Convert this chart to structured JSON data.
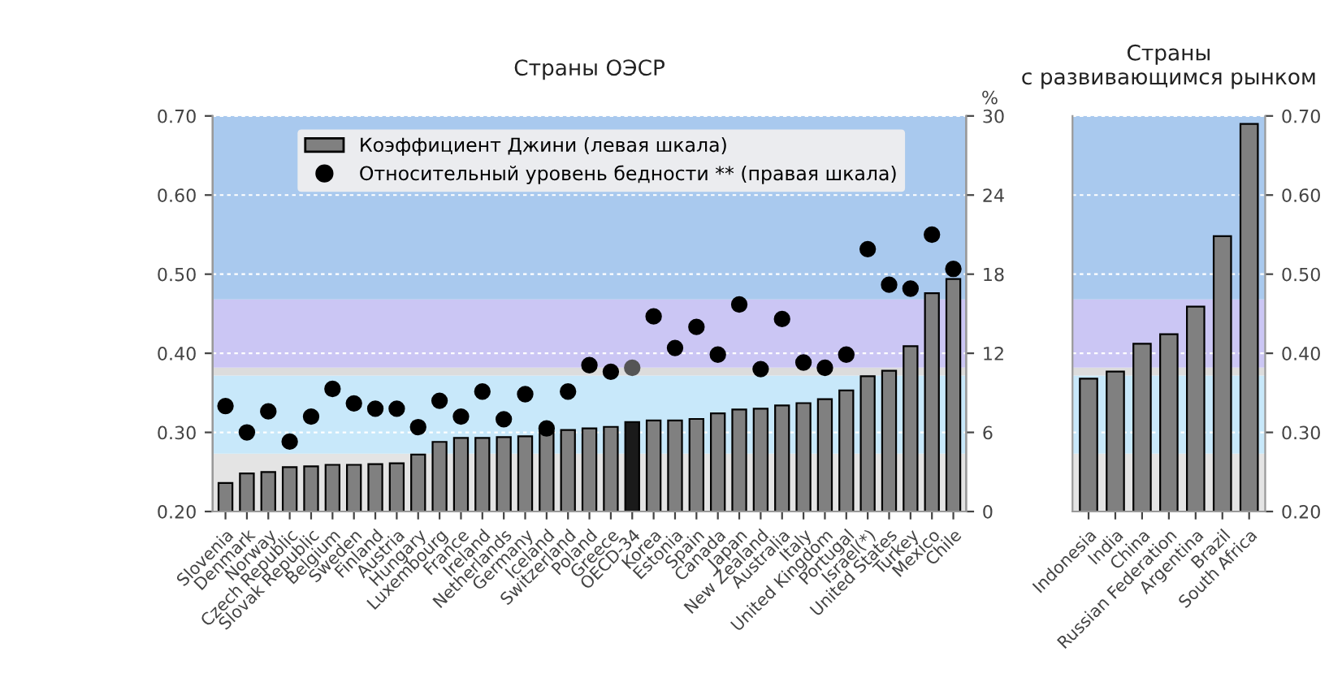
{
  "chart_data": [
    {
      "type": "bar",
      "title": "Страны ОЭСР",
      "y2label": "%",
      "categories": [
        "Slovenia",
        "Denmark",
        "Norway",
        "Czech Republic",
        "Slovak Republic",
        "Belgium",
        "Sweden",
        "Finland",
        "Austria",
        "Hungary",
        "Luxembourg",
        "France",
        "Ireland",
        "Netherlands",
        "Germany",
        "Iceland",
        "Switzerland",
        "Poland",
        "Greece",
        "OECD-34",
        "Korea",
        "Estonia",
        "Spain",
        "Canada",
        "Japan",
        "New Zealand",
        "Australia",
        "Italy",
        "United Kingdom",
        "Portugal",
        "Israel(*)",
        "United States",
        "Turkey",
        "Mexico",
        "Chile"
      ],
      "series": [
        {
          "name": "Коэффициент Джини (левая шкала)",
          "color": "#808080",
          "colors": [
            "#808080",
            "#808080",
            "#808080",
            "#808080",
            "#808080",
            "#808080",
            "#808080",
            "#808080",
            "#808080",
            "#808080",
            "#808080",
            "#808080",
            "#808080",
            "#808080",
            "#808080",
            "#808080",
            "#808080",
            "#808080",
            "#808080",
            "#1a1a1a",
            "#808080",
            "#808080",
            "#808080",
            "#808080",
            "#808080",
            "#808080",
            "#808080",
            "#808080",
            "#808080",
            "#808080",
            "#808080",
            "#808080",
            "#808080",
            "#808080",
            "#808080"
          ],
          "values": [
            0.236,
            0.248,
            0.25,
            0.256,
            0.257,
            0.259,
            0.259,
            0.26,
            0.261,
            0.272,
            0.288,
            0.293,
            0.293,
            0.294,
            0.295,
            0.301,
            0.303,
            0.305,
            0.307,
            0.313,
            0.315,
            0.315,
            0.317,
            0.324,
            0.329,
            0.33,
            0.334,
            0.337,
            0.342,
            0.353,
            0.371,
            0.378,
            0.409,
            0.476,
            0.494
          ]
        },
        {
          "name": "Относительный уровень бедности ** (правая шкала)",
          "type": "scatter",
          "axis": "y2",
          "color": "#000000",
          "colors": [
            "#000000",
            "#000000",
            "#000000",
            "#000000",
            "#000000",
            "#000000",
            "#000000",
            "#000000",
            "#000000",
            "#000000",
            "#000000",
            "#000000",
            "#000000",
            "#000000",
            "#000000",
            "#000000",
            "#000000",
            "#000000",
            "#000000",
            "#555555",
            "#000000",
            "#000000",
            "#000000",
            "#000000",
            "#000000",
            "#000000",
            "#000000",
            "#000000",
            "#000000",
            "#000000",
            "#000000",
            "#000000",
            "#000000",
            "#000000",
            "#000000"
          ],
          "values": [
            8.0,
            6.0,
            7.6,
            5.3,
            7.2,
            9.3,
            8.2,
            7.8,
            7.8,
            6.4,
            8.4,
            7.2,
            9.1,
            7.0,
            8.9,
            6.3,
            9.1,
            11.1,
            10.6,
            10.9,
            14.8,
            12.4,
            14.0,
            11.9,
            15.7,
            10.8,
            14.6,
            11.3,
            10.9,
            11.9,
            19.9,
            17.2,
            16.9,
            21.0,
            18.4
          ]
        }
      ],
      "ylim": [
        0.2,
        0.7
      ],
      "yticks": [
        {
          "value": 0.2,
          "label": "0.20"
        },
        {
          "value": 0.3,
          "label": "0.30"
        },
        {
          "value": 0.4,
          "label": "0.40"
        },
        {
          "value": 0.5,
          "label": "0.50"
        },
        {
          "value": 0.6,
          "label": "0.60"
        },
        {
          "value": 0.7,
          "label": "0.70"
        }
      ],
      "y2lim": [
        0,
        30
      ],
      "y2ticks": [
        0,
        6,
        12,
        18,
        24,
        30
      ],
      "bands": [
        {
          "axis": "y",
          "from": 0.2,
          "to": 0.273,
          "color": "#e4e4e4"
        },
        {
          "axis": "y",
          "from": 0.273,
          "to": 0.372,
          "color": "#c8e8fa"
        },
        {
          "axis": "y",
          "from": 0.372,
          "to": 0.382,
          "color": "#dcdcdc"
        },
        {
          "axis": "y",
          "from": 0.382,
          "to": 0.468,
          "color": "#cbc6f4"
        },
        {
          "axis": "y",
          "from": 0.468,
          "to": 0.7,
          "color": "#a9c9ee"
        }
      ],
      "grid": "y",
      "legend": "top left",
      "marker": "circle"
    },
    {
      "type": "bar",
      "title": "Страны\nс развивающимся рынком",
      "categories": [
        "Indonesia",
        "India",
        "China",
        "Russian Federation",
        "Argentina",
        "Brazil",
        "South Africa"
      ],
      "series": [
        {
          "color": "#808080",
          "values": [
            0.368,
            0.377,
            0.412,
            0.424,
            0.459,
            0.548,
            0.69
          ]
        }
      ],
      "ylim": [
        0.2,
        0.7
      ],
      "yticks": [
        {
          "value": 0.2,
          "label": "0.20"
        },
        {
          "value": 0.3,
          "label": "0.30"
        },
        {
          "value": 0.4,
          "label": "0.40"
        },
        {
          "value": 0.5,
          "label": "0.50"
        },
        {
          "value": 0.6,
          "label": "0.60"
        },
        {
          "value": 0.7,
          "label": "0.70"
        }
      ],
      "bands": [
        {
          "axis": "y",
          "from": 0.2,
          "to": 0.273,
          "color": "#e4e4e4"
        },
        {
          "axis": "y",
          "from": 0.273,
          "to": 0.372,
          "color": "#c8e8fa"
        },
        {
          "axis": "y",
          "from": 0.372,
          "to": 0.382,
          "color": "#dcdcdc"
        },
        {
          "axis": "y",
          "from": 0.382,
          "to": 0.468,
          "color": "#cbc6f4"
        },
        {
          "axis": "y",
          "from": 0.468,
          "to": 0.7,
          "color": "#a9c9ee"
        }
      ],
      "grid": "y"
    }
  ]
}
